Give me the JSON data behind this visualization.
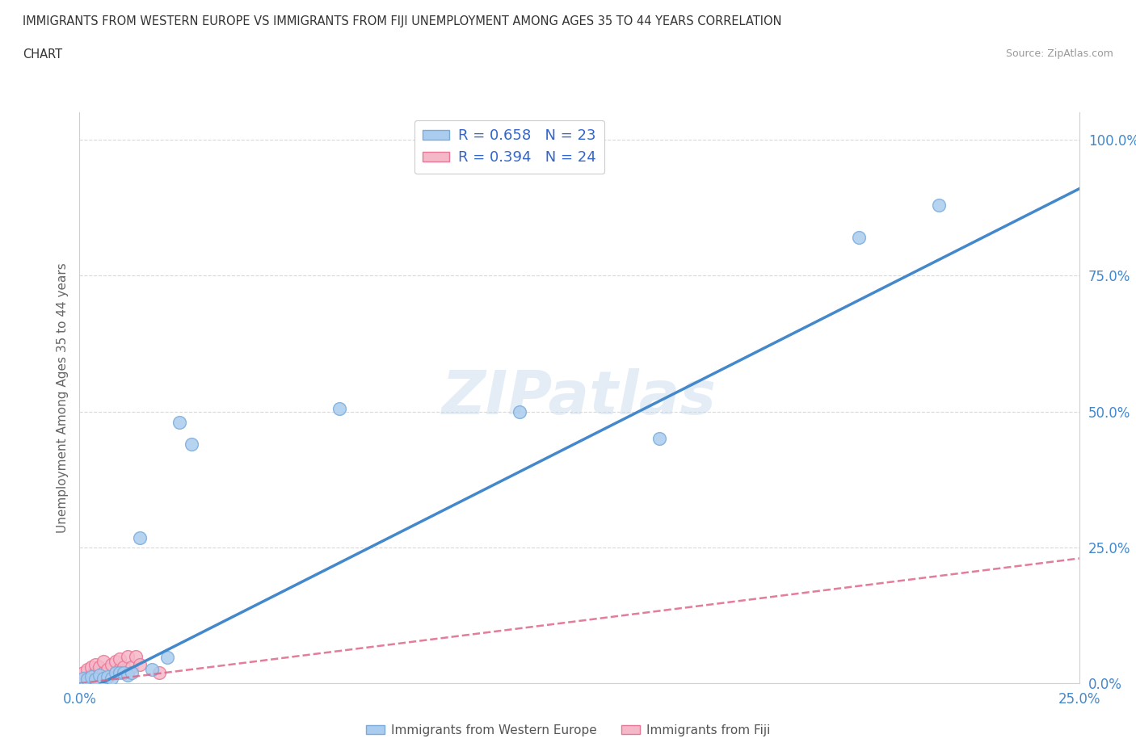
{
  "title_line1": "IMMIGRANTS FROM WESTERN EUROPE VS IMMIGRANTS FROM FIJI UNEMPLOYMENT AMONG AGES 35 TO 44 YEARS CORRELATION",
  "title_line2": "CHART",
  "source": "Source: ZipAtlas.com",
  "ylabel": "Unemployment Among Ages 35 to 44 years",
  "xlim": [
    0.0,
    0.25
  ],
  "ylim": [
    0.0,
    1.05
  ],
  "x_ticks": [
    0.0,
    0.05,
    0.1,
    0.15,
    0.2,
    0.25
  ],
  "y_ticks": [
    0.0,
    0.25,
    0.5,
    0.75,
    1.0
  ],
  "western_europe_x": [
    0.001,
    0.002,
    0.003,
    0.004,
    0.005,
    0.006,
    0.007,
    0.008,
    0.009,
    0.01,
    0.011,
    0.012,
    0.013,
    0.015,
    0.018,
    0.022,
    0.025,
    0.028,
    0.065,
    0.11,
    0.145,
    0.195,
    0.215
  ],
  "western_europe_y": [
    0.01,
    0.008,
    0.012,
    0.008,
    0.015,
    0.01,
    0.012,
    0.01,
    0.02,
    0.02,
    0.02,
    0.015,
    0.02,
    0.268,
    0.025,
    0.048,
    0.48,
    0.44,
    0.505,
    0.5,
    0.45,
    0.82,
    0.88
  ],
  "fiji_x": [
    0.001,
    0.001,
    0.002,
    0.002,
    0.003,
    0.003,
    0.004,
    0.004,
    0.005,
    0.005,
    0.006,
    0.006,
    0.007,
    0.008,
    0.009,
    0.009,
    0.01,
    0.01,
    0.011,
    0.012,
    0.013,
    0.014,
    0.015,
    0.02
  ],
  "fiji_y": [
    0.01,
    0.02,
    0.012,
    0.025,
    0.015,
    0.03,
    0.02,
    0.035,
    0.015,
    0.03,
    0.02,
    0.04,
    0.025,
    0.035,
    0.02,
    0.04,
    0.025,
    0.045,
    0.03,
    0.05,
    0.03,
    0.05,
    0.035,
    0.02
  ],
  "we_R": 0.658,
  "we_N": 23,
  "fiji_R": 0.394,
  "fiji_N": 24,
  "we_color": "#aaccee",
  "fiji_color": "#f5b8c8",
  "we_edge_color": "#7aabdb",
  "fiji_edge_color": "#e87898",
  "we_line_color": "#4488cc",
  "fiji_line_color": "#dd6688",
  "legend_label_color": "#3366cc",
  "tick_color": "#4488cc",
  "ylabel_color": "#666666",
  "watermark": "ZIPatlas",
  "background_color": "#ffffff",
  "grid_color": "#d0d0d0",
  "source_color": "#999999",
  "title_color": "#333333",
  "bottom_legend_color": "#555555"
}
